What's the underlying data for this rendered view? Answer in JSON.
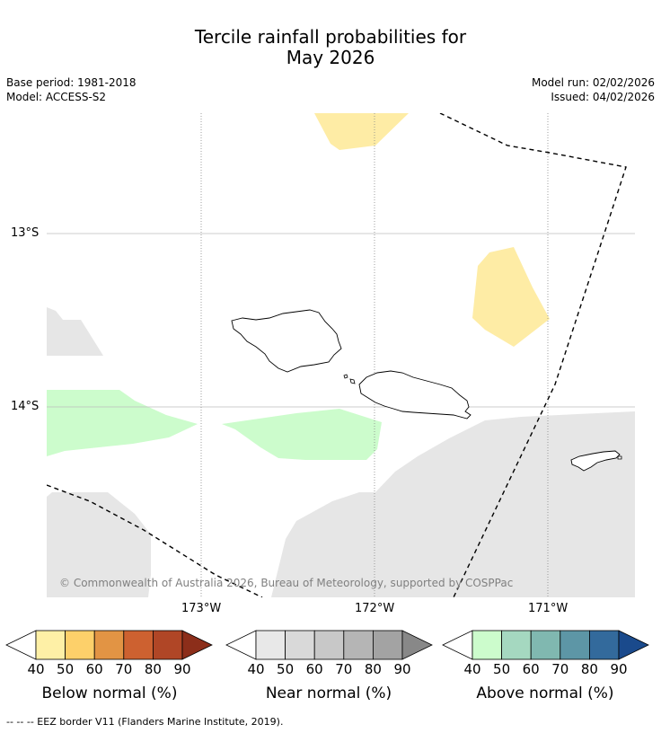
{
  "title_line1": "Tercile rainfall probabilities for",
  "title_line2": "May 2026",
  "base_period": "Base period: 1981-2018",
  "model": "Model: ACCESS-S2",
  "model_run": "Model run: 02/02/2026",
  "issued": "Issued: 04/02/2026",
  "lat_labels": [
    "13°S",
    "14°S"
  ],
  "lon_labels": [
    "173°W",
    "172°W",
    "171°W"
  ],
  "copyright": "© Commonwealth of Australia 2026, Bureau of Meteorology, supported by COSPPac",
  "colorbars": [
    {
      "label": "Below normal (%)",
      "ticks": [
        "40",
        "50",
        "60",
        "70",
        "80",
        "90"
      ],
      "colors": [
        "#fef0a6",
        "#fdd06a",
        "#e29444",
        "#cd6130",
        "#b04626",
        "#8c2e1a"
      ]
    },
    {
      "label": "Near normal (%)",
      "ticks": [
        "40",
        "50",
        "60",
        "70",
        "80",
        "90"
      ],
      "colors": [
        "#e8e8e8",
        "#d9d9d9",
        "#c8c8c8",
        "#b5b5b5",
        "#a3a3a3",
        "#888888"
      ]
    },
    {
      "label": "Above normal (%)",
      "ticks": [
        "40",
        "50",
        "60",
        "70",
        "80",
        "90"
      ],
      "colors": [
        "#ccfccc",
        "#a5d8c0",
        "#80b8b0",
        "#5d96a6",
        "#336a9c",
        "#1a4a8c"
      ]
    }
  ],
  "footer": "--  --  -- EEZ border V11 (Flanders Marine Institute, 2019)."
}
